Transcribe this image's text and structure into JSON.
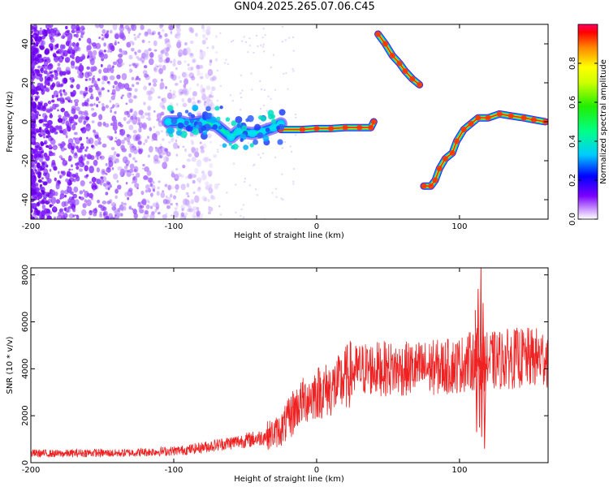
{
  "title": "GN04.2025.265.07.06.C45",
  "chart_data": [
    {
      "type": "heatmap",
      "xlabel": "Height of straight line (km)",
      "ylabel": "Frequency (Hz)",
      "xlim": [
        -200,
        162
      ],
      "ylim": [
        -50,
        50
      ],
      "xticks": [
        "-200",
        "-100",
        "0",
        "100"
      ],
      "xtick_values": [
        -200,
        -100,
        0,
        100
      ],
      "yticks": [
        "-40",
        "-20",
        "0",
        "20",
        "40"
      ],
      "ytick_values": [
        -40,
        -20,
        0,
        20,
        40
      ],
      "colorbar": {
        "label": "Normalized spectral amplitude",
        "range": [
          0,
          1
        ],
        "ticks": [
          "0.0",
          "0.2",
          "0.4",
          "0.6",
          "0.8"
        ],
        "tick_values": [
          0.0,
          0.2,
          0.4,
          0.6,
          0.8
        ]
      },
      "tracks": [
        {
          "name": "noisy-segment",
          "points": [
            [
              -104,
              0
            ],
            [
              -95,
              0
            ],
            [
              -90,
              -1
            ],
            [
              -80,
              0
            ],
            [
              -70,
              -2
            ],
            [
              -60,
              -8
            ],
            [
              -55,
              -5
            ],
            [
              -45,
              -6
            ],
            [
              -38,
              -5
            ],
            [
              -30,
              -3
            ],
            [
              -25,
              -1
            ]
          ]
        },
        {
          "name": "flat-segment",
          "points": [
            [
              -25,
              -4
            ],
            [
              -10,
              -4
            ],
            [
              0,
              -3.5
            ],
            [
              10,
              -3.5
            ],
            [
              20,
              -3
            ],
            [
              30,
              -3
            ],
            [
              38,
              -3
            ],
            [
              40,
              0
            ]
          ]
        },
        {
          "name": "upper-branch",
          "points": [
            [
              43,
              45
            ],
            [
              48,
              40
            ],
            [
              53,
              34
            ],
            [
              58,
              30
            ],
            [
              62,
              26
            ],
            [
              67,
              22
            ],
            [
              72,
              19
            ]
          ]
        },
        {
          "name": "lower-branch",
          "points": [
            [
              75,
              -33
            ],
            [
              80,
              -33
            ],
            [
              83,
              -30
            ],
            [
              86,
              -24
            ],
            [
              90,
              -19
            ],
            [
              95,
              -16
            ],
            [
              98,
              -10
            ],
            [
              103,
              -4
            ],
            [
              108,
              -1
            ],
            [
              113,
              2
            ],
            [
              120,
              2
            ],
            [
              128,
              4
            ],
            [
              136,
              3
            ],
            [
              145,
              2
            ],
            [
              152,
              1
            ],
            [
              160,
              0
            ]
          ]
        }
      ]
    },
    {
      "type": "line",
      "xlabel": "Height of straight line (km)",
      "ylabel": "SNR (10 * v/v)",
      "xlim": [
        -200,
        162
      ],
      "ylim": [
        0,
        8300
      ],
      "xticks": [
        "-200",
        "-100",
        "0",
        "100"
      ],
      "xtick_values": [
        -200,
        -100,
        0,
        100
      ],
      "yticks": [
        "0",
        "2000",
        "4000",
        "6000",
        "8000"
      ],
      "ytick_values": [
        0,
        2000,
        4000,
        6000,
        8000
      ],
      "series": [
        {
          "name": "SNR",
          "color": "#ee2222",
          "x": [
            -200,
            -180,
            -160,
            -140,
            -120,
            -100,
            -90,
            -80,
            -70,
            -60,
            -50,
            -40,
            -35,
            -30,
            -25,
            -20,
            -15,
            -10,
            -5,
            0,
            5,
            10,
            15,
            20,
            25,
            30,
            35,
            40,
            50,
            60,
            70,
            80,
            90,
            100,
            105,
            110,
            113,
            115,
            117,
            120,
            130,
            140,
            150,
            162
          ],
          "values": [
            400,
            380,
            420,
            400,
            450,
            500,
            550,
            650,
            750,
            850,
            950,
            1050,
            1150,
            1250,
            1400,
            1800,
            2300,
            2600,
            2800,
            3000,
            3050,
            3150,
            3300,
            3600,
            3850,
            3950,
            4000,
            4000,
            4000,
            3980,
            4000,
            4050,
            4080,
            4150,
            4300,
            4350,
            4500,
            4400,
            4300,
            4300,
            4400,
            4450,
            4450,
            4500
          ]
        }
      ],
      "annotations": [
        {
          "text": "spike",
          "x": 115,
          "values": [
            8300,
            1100
          ]
        }
      ]
    }
  ]
}
